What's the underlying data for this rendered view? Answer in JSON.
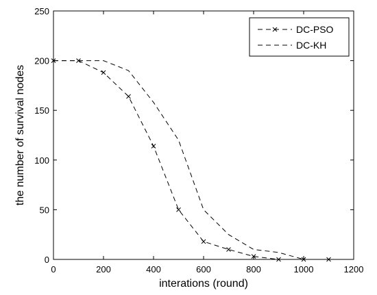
{
  "chart_data": {
    "type": "line",
    "xlabel": "interations (round)",
    "ylabel": "the number of survival nodes",
    "xlim": [
      0,
      1200
    ],
    "ylim": [
      0,
      250
    ],
    "xticks": [
      0,
      200,
      400,
      600,
      800,
      1000,
      1200
    ],
    "yticks": [
      0,
      50,
      100,
      150,
      200,
      250
    ],
    "grid": false,
    "legend_position": "top-right",
    "series": [
      {
        "name": "DC-PSO",
        "style": "dashed",
        "marker": "x",
        "color": "#000000",
        "x": [
          0,
          100,
          200,
          300,
          400,
          500,
          600,
          700,
          800,
          900,
          1000,
          1100
        ],
        "y": [
          200,
          200,
          188,
          164,
          114,
          50,
          18,
          10,
          3,
          0,
          0,
          0
        ]
      },
      {
        "name": "DC-KH",
        "style": "dashed",
        "marker": "none",
        "color": "#000000",
        "x": [
          0,
          100,
          200,
          300,
          400,
          500,
          600,
          700,
          800,
          900,
          1000
        ],
        "y": [
          200,
          200,
          200,
          190,
          158,
          120,
          50,
          25,
          10,
          7,
          0
        ]
      }
    ]
  }
}
